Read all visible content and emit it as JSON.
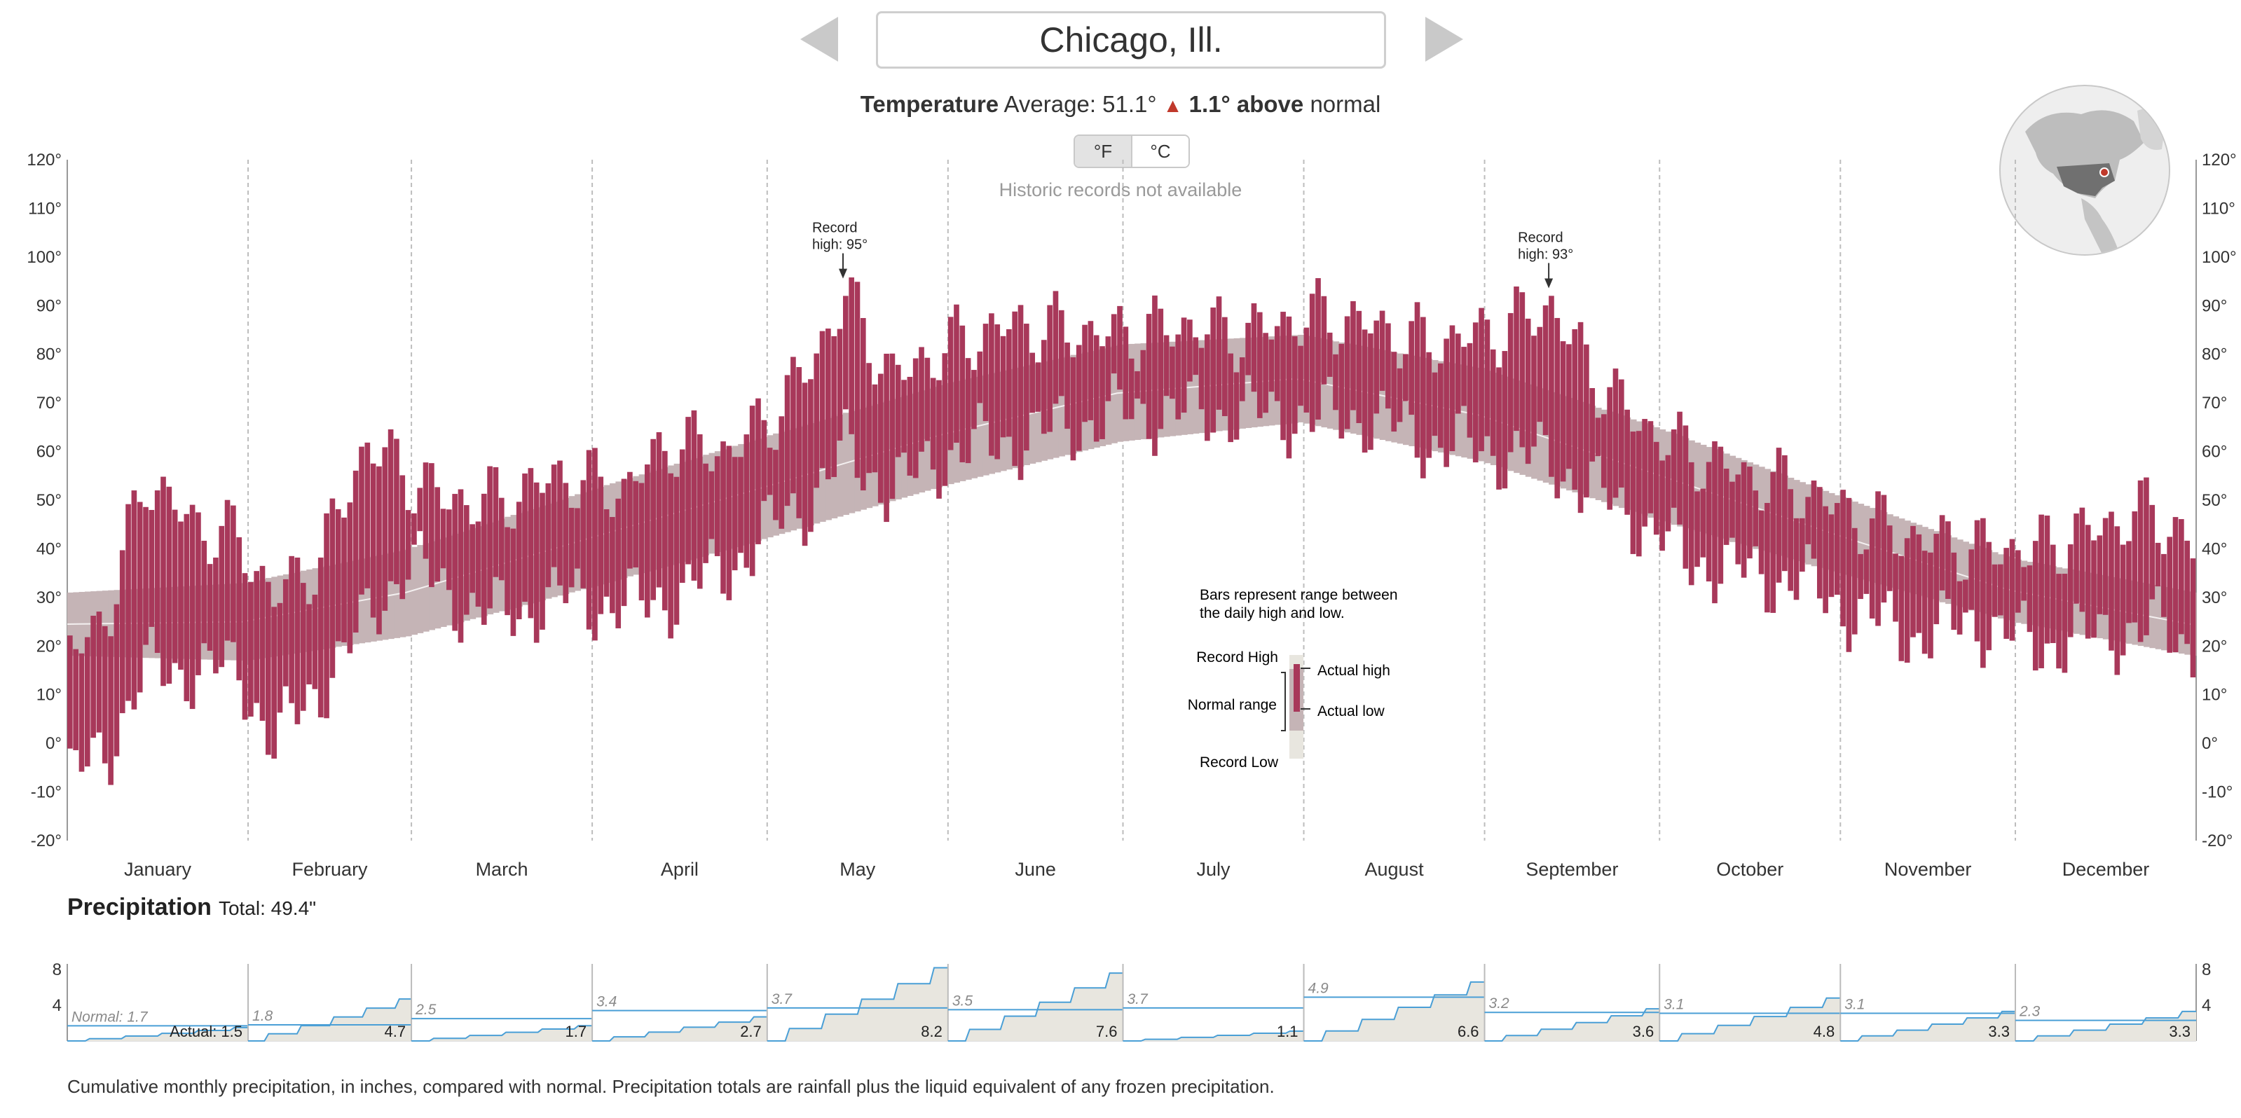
{
  "header": {
    "city": "Chicago, Ill.",
    "prev_label": "Previous city",
    "next_label": "Next city"
  },
  "temperature": {
    "title": "Temperature",
    "average_label": "Average: 51.1°",
    "triangle": "▲",
    "delta_text": "1.1° above",
    "normal_word": "normal",
    "unit_f": "°F",
    "unit_c": "°C",
    "records_note": "Historic records not available"
  },
  "legend": {
    "caption_line1": "Bars represent range between",
    "caption_line2": "the daily high and low.",
    "record_high": "Record High",
    "normal_range": "Normal range",
    "record_low": "Record Low",
    "actual_high": "Actual high",
    "actual_low": "Actual low"
  },
  "annotations": [
    {
      "line1": "Record",
      "line2": "high: 95°",
      "day": 134,
      "value": 95
    },
    {
      "line1": "Record",
      "line2": "high: 93°",
      "day": 255,
      "value": 93
    }
  ],
  "precipitation": {
    "title": "Precipitation",
    "total": "Total: 49.4\"",
    "footnote": "Cumulative monthly precipitation, in inches, compared with normal. Precipitation totals are rainfall plus the liquid equivalent of any frozen precipitation."
  },
  "colors": {
    "actual_bar": "#a8385a",
    "normal_band": "#c5b4b6",
    "record_band": "#e8e6df",
    "precip_line": "#4a9fd6",
    "precip_fill": "#e8e6df"
  },
  "chart_data": [
    {
      "type": "bar",
      "title": "Temperature",
      "description_of_marks": "Daily high/low range bars over normal range band",
      "months": [
        "January",
        "February",
        "March",
        "April",
        "May",
        "June",
        "July",
        "August",
        "September",
        "October",
        "November",
        "December"
      ],
      "ylim": [
        -20,
        120
      ],
      "y_ticks": [
        120,
        110,
        100,
        90,
        80,
        70,
        60,
        50,
        40,
        30,
        20,
        10,
        0,
        -10,
        -20
      ],
      "y_tick_labels": [
        "120°",
        "110°",
        "100°",
        "90°",
        "80°",
        "70°",
        "60°",
        "50°",
        "40°",
        "30°",
        "20°",
        "10°",
        "0°",
        "-10°",
        "-20°"
      ],
      "grid": false,
      "normal_range": {
        "low_knots": [
          [
            1,
            18
          ],
          [
            31,
            17
          ],
          [
            59,
            22
          ],
          [
            90,
            32
          ],
          [
            120,
            42
          ],
          [
            151,
            53
          ],
          [
            181,
            62
          ],
          [
            212,
            66
          ],
          [
            243,
            58
          ],
          [
            273,
            46
          ],
          [
            304,
            35
          ],
          [
            334,
            25
          ],
          [
            365,
            18
          ]
        ],
        "high_knots": [
          [
            1,
            31
          ],
          [
            31,
            33
          ],
          [
            59,
            40
          ],
          [
            90,
            52
          ],
          [
            120,
            63
          ],
          [
            151,
            74
          ],
          [
            181,
            82
          ],
          [
            212,
            84
          ],
          [
            243,
            77
          ],
          [
            273,
            65
          ],
          [
            304,
            51
          ],
          [
            334,
            38
          ],
          [
            365,
            31
          ]
        ]
      },
      "daily_range_knots": [
        {
          "day": 1,
          "low": -8,
          "high": 18
        },
        {
          "day": 8,
          "low": 0,
          "high": 28
        },
        {
          "day": 14,
          "low": 15,
          "high": 55
        },
        {
          "day": 22,
          "low": 15,
          "high": 45
        },
        {
          "day": 30,
          "low": 15,
          "high": 42
        },
        {
          "day": 36,
          "low": 0,
          "high": 30
        },
        {
          "day": 44,
          "low": 12,
          "high": 38
        },
        {
          "day": 52,
          "low": 25,
          "high": 62
        },
        {
          "day": 59,
          "low": 38,
          "high": 55
        },
        {
          "day": 66,
          "low": 30,
          "high": 50
        },
        {
          "day": 75,
          "low": 26,
          "high": 50
        },
        {
          "day": 85,
          "low": 30,
          "high": 55
        },
        {
          "day": 96,
          "low": 28,
          "high": 52
        },
        {
          "day": 104,
          "low": 30,
          "high": 62
        },
        {
          "day": 114,
          "low": 36,
          "high": 60
        },
        {
          "day": 122,
          "low": 45,
          "high": 68
        },
        {
          "day": 128,
          "low": 50,
          "high": 78
        },
        {
          "day": 134,
          "low": 60,
          "high": 92
        },
        {
          "day": 142,
          "low": 52,
          "high": 75
        },
        {
          "day": 152,
          "low": 60,
          "high": 82
        },
        {
          "day": 162,
          "low": 62,
          "high": 86
        },
        {
          "day": 172,
          "low": 65,
          "high": 85
        },
        {
          "day": 182,
          "low": 68,
          "high": 84
        },
        {
          "day": 192,
          "low": 68,
          "high": 86
        },
        {
          "day": 202,
          "low": 68,
          "high": 84
        },
        {
          "day": 214,
          "low": 67,
          "high": 88
        },
        {
          "day": 224,
          "low": 67,
          "high": 86
        },
        {
          "day": 234,
          "low": 62,
          "high": 82
        },
        {
          "day": 246,
          "low": 60,
          "high": 85
        },
        {
          "day": 255,
          "low": 58,
          "high": 90
        },
        {
          "day": 262,
          "low": 52,
          "high": 76
        },
        {
          "day": 270,
          "low": 46,
          "high": 66
        },
        {
          "day": 278,
          "low": 38,
          "high": 60
        },
        {
          "day": 288,
          "low": 35,
          "high": 55
        },
        {
          "day": 298,
          "low": 33,
          "high": 52
        },
        {
          "day": 308,
          "low": 26,
          "high": 46
        },
        {
          "day": 318,
          "low": 22,
          "high": 42
        },
        {
          "day": 328,
          "low": 25,
          "high": 40
        },
        {
          "day": 338,
          "low": 20,
          "high": 40
        },
        {
          "day": 348,
          "low": 22,
          "high": 44
        },
        {
          "day": 358,
          "low": 24,
          "high": 48
        },
        {
          "day": 365,
          "low": 20,
          "high": 40
        }
      ]
    },
    {
      "type": "area",
      "title": "Precipitation",
      "ylim": [
        0,
        8
      ],
      "y_ticks": [
        8,
        4
      ],
      "normal_prefix": "Normal:",
      "actual_prefix": "Actual:",
      "months": [
        {
          "month": "January",
          "normal": 1.7,
          "actual": 1.5,
          "normal_label": "1.7",
          "actual_label": "1.5"
        },
        {
          "month": "February",
          "normal": 1.8,
          "actual": 4.7,
          "normal_label": "1.8",
          "actual_label": "4.7"
        },
        {
          "month": "March",
          "normal": 2.5,
          "actual": 1.7,
          "normal_label": "2.5",
          "actual_label": "1.7"
        },
        {
          "month": "April",
          "normal": 3.4,
          "actual": 2.7,
          "normal_label": "3.4",
          "actual_label": "2.7"
        },
        {
          "month": "May",
          "normal": 3.7,
          "actual": 8.2,
          "normal_label": "3.7",
          "actual_label": "8.2"
        },
        {
          "month": "June",
          "normal": 3.5,
          "actual": 7.6,
          "normal_label": "3.5",
          "actual_label": "7.6"
        },
        {
          "month": "July",
          "normal": 3.7,
          "actual": 1.1,
          "normal_label": "3.7",
          "actual_label": "1.1"
        },
        {
          "month": "August",
          "normal": 4.9,
          "actual": 6.6,
          "normal_label": "4.9",
          "actual_label": "6.6"
        },
        {
          "month": "September",
          "normal": 3.2,
          "actual": 3.6,
          "normal_label": "3.2",
          "actual_label": "3.6"
        },
        {
          "month": "October",
          "normal": 3.1,
          "actual": 4.8,
          "normal_label": "3.1",
          "actual_label": "4.8"
        },
        {
          "month": "November",
          "normal": 3.1,
          "actual": 3.3,
          "normal_label": "3.1",
          "actual_label": "3.3"
        },
        {
          "month": "December",
          "normal": 2.3,
          "actual": 3.3,
          "normal_label": "2.3",
          "actual_label": "3.3"
        }
      ]
    }
  ]
}
